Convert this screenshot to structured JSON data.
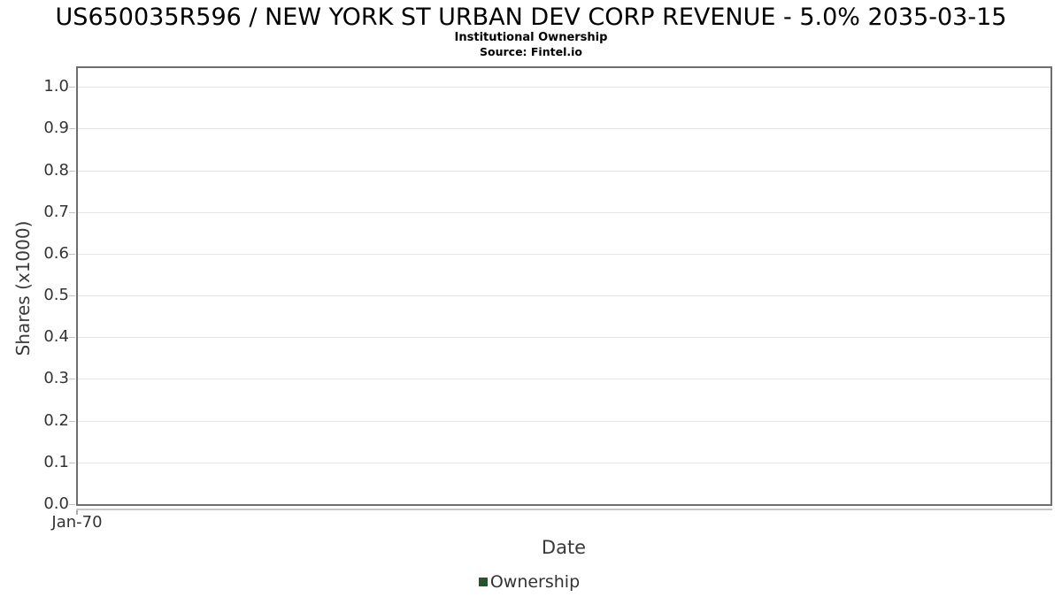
{
  "figure": {
    "title": "US650035R596 / NEW YORK ST URBAN DEV CORP REVENUE - 5.0% 2035-03-15",
    "subtitle": "Institutional Ownership",
    "source": "Source: Fintel.io"
  },
  "chart_data": {
    "type": "line",
    "title": "US650035R596 / NEW YORK ST URBAN DEV CORP REVENUE - 5.0% 2035-03-15",
    "subtitle": "Institutional Ownership",
    "source_note": "Source: Fintel.io",
    "xlabel": "Date",
    "ylabel": "Shares (x1000)",
    "x_axis": {
      "label": "Date",
      "ticks": [
        "Jan-70"
      ]
    },
    "y_axis": {
      "label": "Shares (x1000)",
      "ticks": [
        "0.0",
        "0.1",
        "0.2",
        "0.3",
        "0.4",
        "0.5",
        "0.6",
        "0.7",
        "0.8",
        "0.9",
        "1.0"
      ],
      "tick_values": [
        0.0,
        0.1,
        0.2,
        0.3,
        0.4,
        0.5,
        0.6,
        0.7,
        0.8,
        0.9,
        1.0
      ],
      "range": [
        0,
        1.045
      ]
    },
    "grid": "horizontal-only",
    "legend_position": "bottom-center",
    "series": [
      {
        "name": "Ownership",
        "color": "#24552b",
        "x": [],
        "values": []
      }
    ]
  },
  "colors": {
    "background": "#ffffff",
    "plot_border": "#6e6e6e",
    "gridline": "#e5e5e5",
    "axis_line": "#c8c8c8",
    "tick_text": "#333333",
    "title_text": "#000000",
    "series_ownership": "#24552b"
  }
}
